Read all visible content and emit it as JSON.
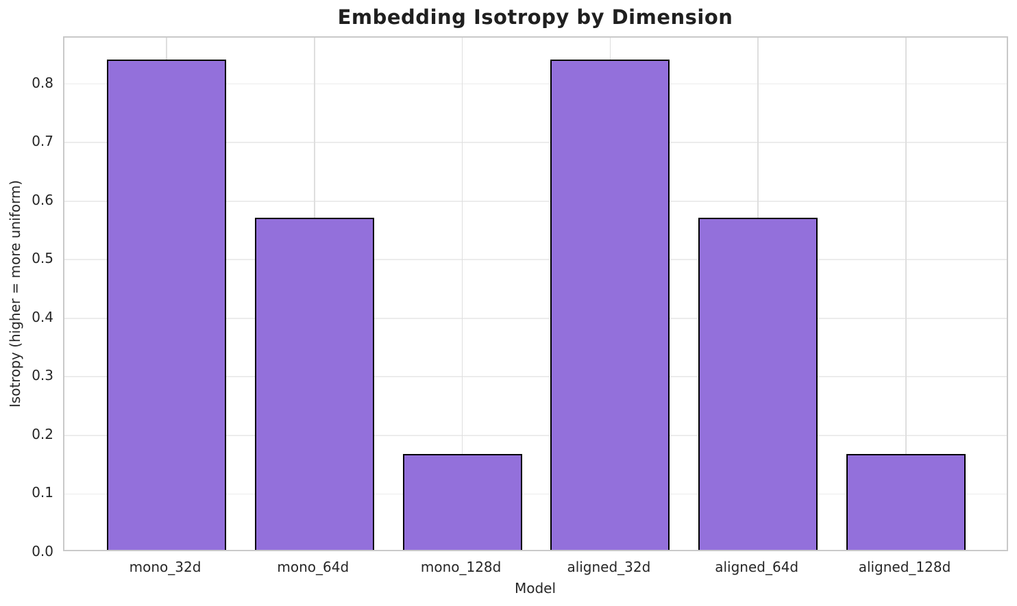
{
  "chart_data": {
    "type": "bar",
    "title": "Embedding Isotropy by Dimension",
    "xlabel": "Model",
    "ylabel": "Isotropy (higher = more uniform)",
    "categories": [
      "mono_32d",
      "mono_64d",
      "mono_128d",
      "aligned_32d",
      "aligned_64d",
      "aligned_128d"
    ],
    "values": [
      0.837,
      0.567,
      0.164,
      0.837,
      0.567,
      0.164
    ],
    "ylim": [
      0,
      0.879
    ],
    "yticks": [
      "0.0",
      "0.1",
      "0.2",
      "0.3",
      "0.4",
      "0.5",
      "0.6",
      "0.7",
      "0.8"
    ],
    "grid": true,
    "legend_position": "none",
    "bar_color": "#9370DB",
    "bar_edge_color": "#000000",
    "h_gridline_color": "#ececec",
    "v_gridline_color": "#dedede",
    "spine_color": "#c9c9c9"
  }
}
